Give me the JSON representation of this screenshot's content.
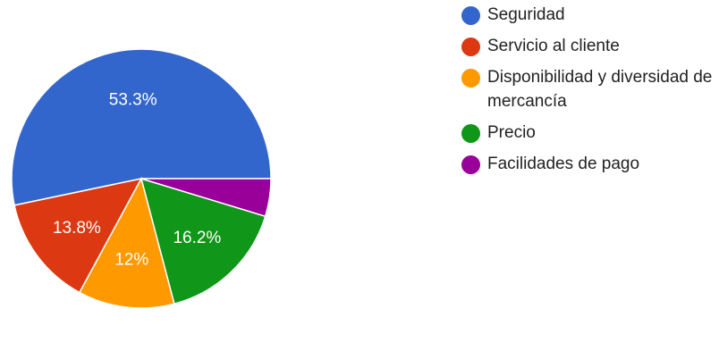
{
  "chart_data": {
    "type": "pie",
    "title": "",
    "legend_position": "right",
    "start_angle_deg": 90,
    "slices": [
      {
        "name": "Seguridad",
        "value": 53.3,
        "label": "53.3%",
        "color": "#3366cc"
      },
      {
        "name": "Servicio al cliente",
        "value": 13.8,
        "label": "13.8%",
        "color": "#dc3912"
      },
      {
        "name": "Disponibilidad y diversidad de mercancía",
        "value": 12,
        "label": "12%",
        "color": "#ff9900"
      },
      {
        "name": "Precio",
        "value": 16.2,
        "label": "16.2%",
        "color": "#109618"
      },
      {
        "name": "Facilidades de pago",
        "value": 4.7,
        "label": "",
        "color": "#990099"
      }
    ]
  }
}
